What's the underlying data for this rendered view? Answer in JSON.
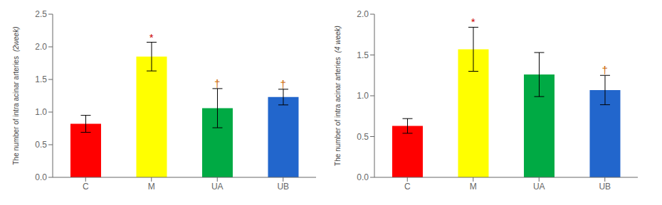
{
  "chart_data": [
    {
      "type": "bar",
      "categories": [
        "C",
        "M",
        "UA",
        "UB"
      ],
      "values": [
        0.82,
        1.85,
        1.06,
        1.23
      ],
      "errors": [
        0.13,
        0.22,
        0.3,
        0.12
      ],
      "colors": [
        "#ff0000",
        "#ffff00",
        "#00aa44",
        "#2266cc"
      ],
      "ylim": [
        0,
        2.5
      ],
      "yticks": [
        {
          "value": 0,
          "label": "0.0"
        },
        0.5,
        {
          "value": 1.0,
          "label": "1.0"
        },
        1.5,
        {
          "value": 2.0,
          "label": "2.0"
        },
        2.5
      ],
      "ylabel": "The number of intra acinar arteries",
      "ylabel_sub": "(2week)",
      "annotations": [
        {
          "x": "M",
          "y": 2.09,
          "text": "*",
          "color": "#cc0000"
        },
        {
          "x": "UA",
          "y": 1.38,
          "text": "†",
          "color": "#cc6600"
        },
        {
          "x": "UB",
          "y": 1.37,
          "text": "†",
          "color": "#cc6600"
        }
      ],
      "grid": false
    },
    {
      "type": "bar",
      "categories": [
        "C",
        "M",
        "UA",
        "UB"
      ],
      "values": [
        0.63,
        1.57,
        1.26,
        1.07
      ],
      "errors": [
        0.09,
        0.27,
        0.27,
        0.18
      ],
      "colors": [
        "#ff0000",
        "#ffff00",
        "#00aa44",
        "#2266cc"
      ],
      "ylim": [
        0,
        2.0
      ],
      "yticks": [
        {
          "value": 0,
          "label": "0.0"
        },
        0.5,
        {
          "value": 1.0,
          "label": "1.0"
        },
        1.5,
        {
          "value": 2.0,
          "label": "2.0"
        }
      ],
      "ylabel": "The number of intra acinar arteries",
      "ylabel_sub": "(4 week)",
      "annotations": [
        {
          "x": "M",
          "y": 1.86,
          "text": "*",
          "color": "#cc0000"
        },
        {
          "x": "UB",
          "y": 1.27,
          "text": "†",
          "color": "#cc6600"
        }
      ],
      "grid": false
    }
  ]
}
